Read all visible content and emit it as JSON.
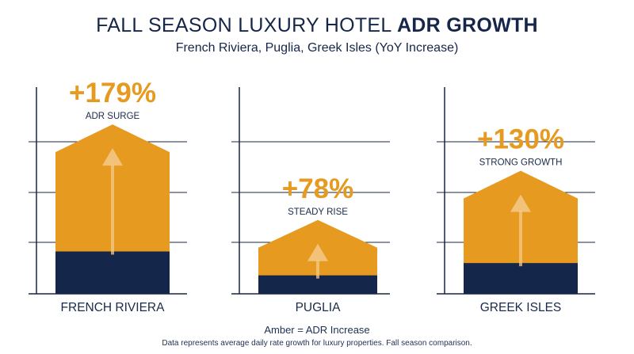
{
  "title_main": "FALL SEASON LUXURY HOTEL",
  "title_bold": "ADR GROWTH",
  "subtitle": "French Riviera, Puglia, Greek Isles (YoY Increase)",
  "legend_text": "Amber = ADR Increase",
  "footnote": "Data represents average daily rate growth for luxury properties. Fall season comparison.",
  "colors": {
    "amber": "#e69a20",
    "navy": "#14274a",
    "axis": "#1a2540",
    "arrow": "#f3c98a",
    "label": "#1a2a4a"
  },
  "chart_data": {
    "type": "bar",
    "categories": [
      "FRENCH RIVIERA",
      "PUGLIA",
      "GREEK ISLES"
    ],
    "values": [
      179,
      78,
      130
    ],
    "value_labels": [
      "+179%",
      "+78%",
      "+130%"
    ],
    "annotations": [
      "ADR SURGE",
      "STEADY RISE",
      "STRONG GROWTH"
    ],
    "base_share": [
      0.25,
      0.25,
      0.25
    ],
    "grid": true,
    "legend": "bottom"
  }
}
